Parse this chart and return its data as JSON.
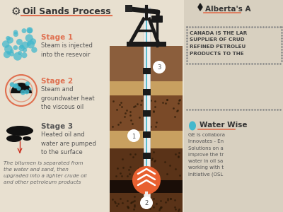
{
  "bg_color": "#e8e0d0",
  "right_bg": "#d8d0c0",
  "title": "Oil Sands Process",
  "title_color": "#333333",
  "underline_color": "#e07050",
  "stage1_title": "Stage 1",
  "stage1_text": "Steam is injected\ninto the resevoir",
  "stage2_title": "Stage 2",
  "stage2_text": "Steam and\ngroundwater heat\nthe viscous oil",
  "stage3_title": "Stage 3",
  "stage3_text": "Heated oil and\nwater are pumped\nto the surface",
  "footer_text": "The bitumen is separated from\nthe water and sand, then\nupgraded into a lighter crude oil\nand other petroleum products",
  "stage_title_color_orange": "#e07050",
  "stage_text_color": "#555555",
  "alberta_title": "Alberta's A",
  "canada_text": "CANADA IS THE LAR\nSUPPLIER OF CRUD\nREFINED PETROLEU\nPRODUCTS TO THE",
  "water_title": "Water Wise",
  "water_text": "GE is collabora\nInnovates - En\nSolutions on a\nimprove the tr\nwater in oil sa\nworking with t\nInitiative (OSL",
  "layer1_color": "#8B5E3C",
  "layer2_color": "#c8a060",
  "layer3_color": "#7a4a28",
  "layer4_color": "#c8a060",
  "layer5_color": "#5a3318",
  "layer6_color": "#1a0e08",
  "layer7_color": "#5a3318",
  "pipe_white": "#f0f0f0",
  "pipe_blue": "#5bbccc",
  "pipe_black": "#1a1a1a",
  "drill_orange": "#e86030",
  "bubble_blue": "#44b8cc",
  "num_circle_bg": "#ffffff",
  "num_circle_color": "#555555"
}
